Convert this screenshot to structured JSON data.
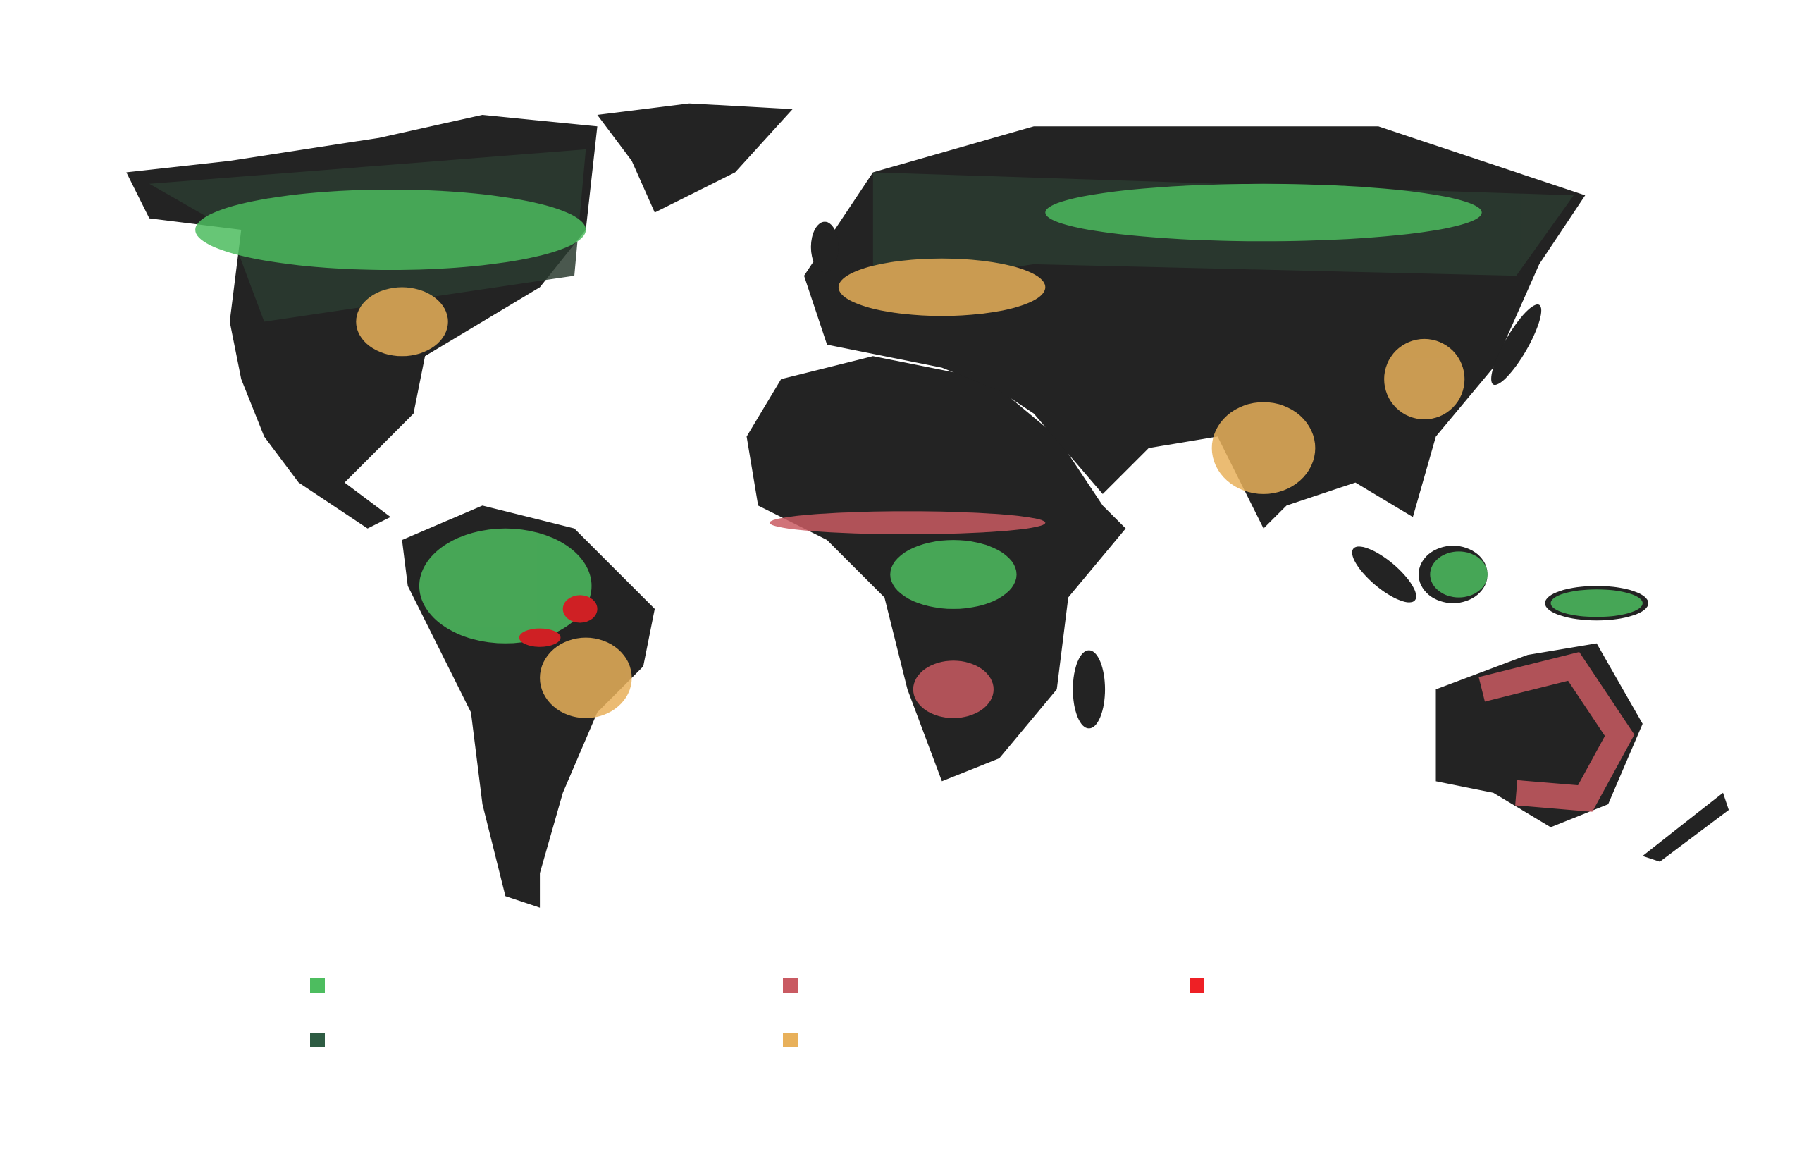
{
  "map": {
    "legend": [
      {
        "color": "#4dbd5f"
      },
      {
        "color": "#c95a62"
      },
      {
        "color": "#ee2025"
      },
      {
        "color": "#2e5c43"
      },
      {
        "color": "#e8b05a"
      }
    ]
  }
}
